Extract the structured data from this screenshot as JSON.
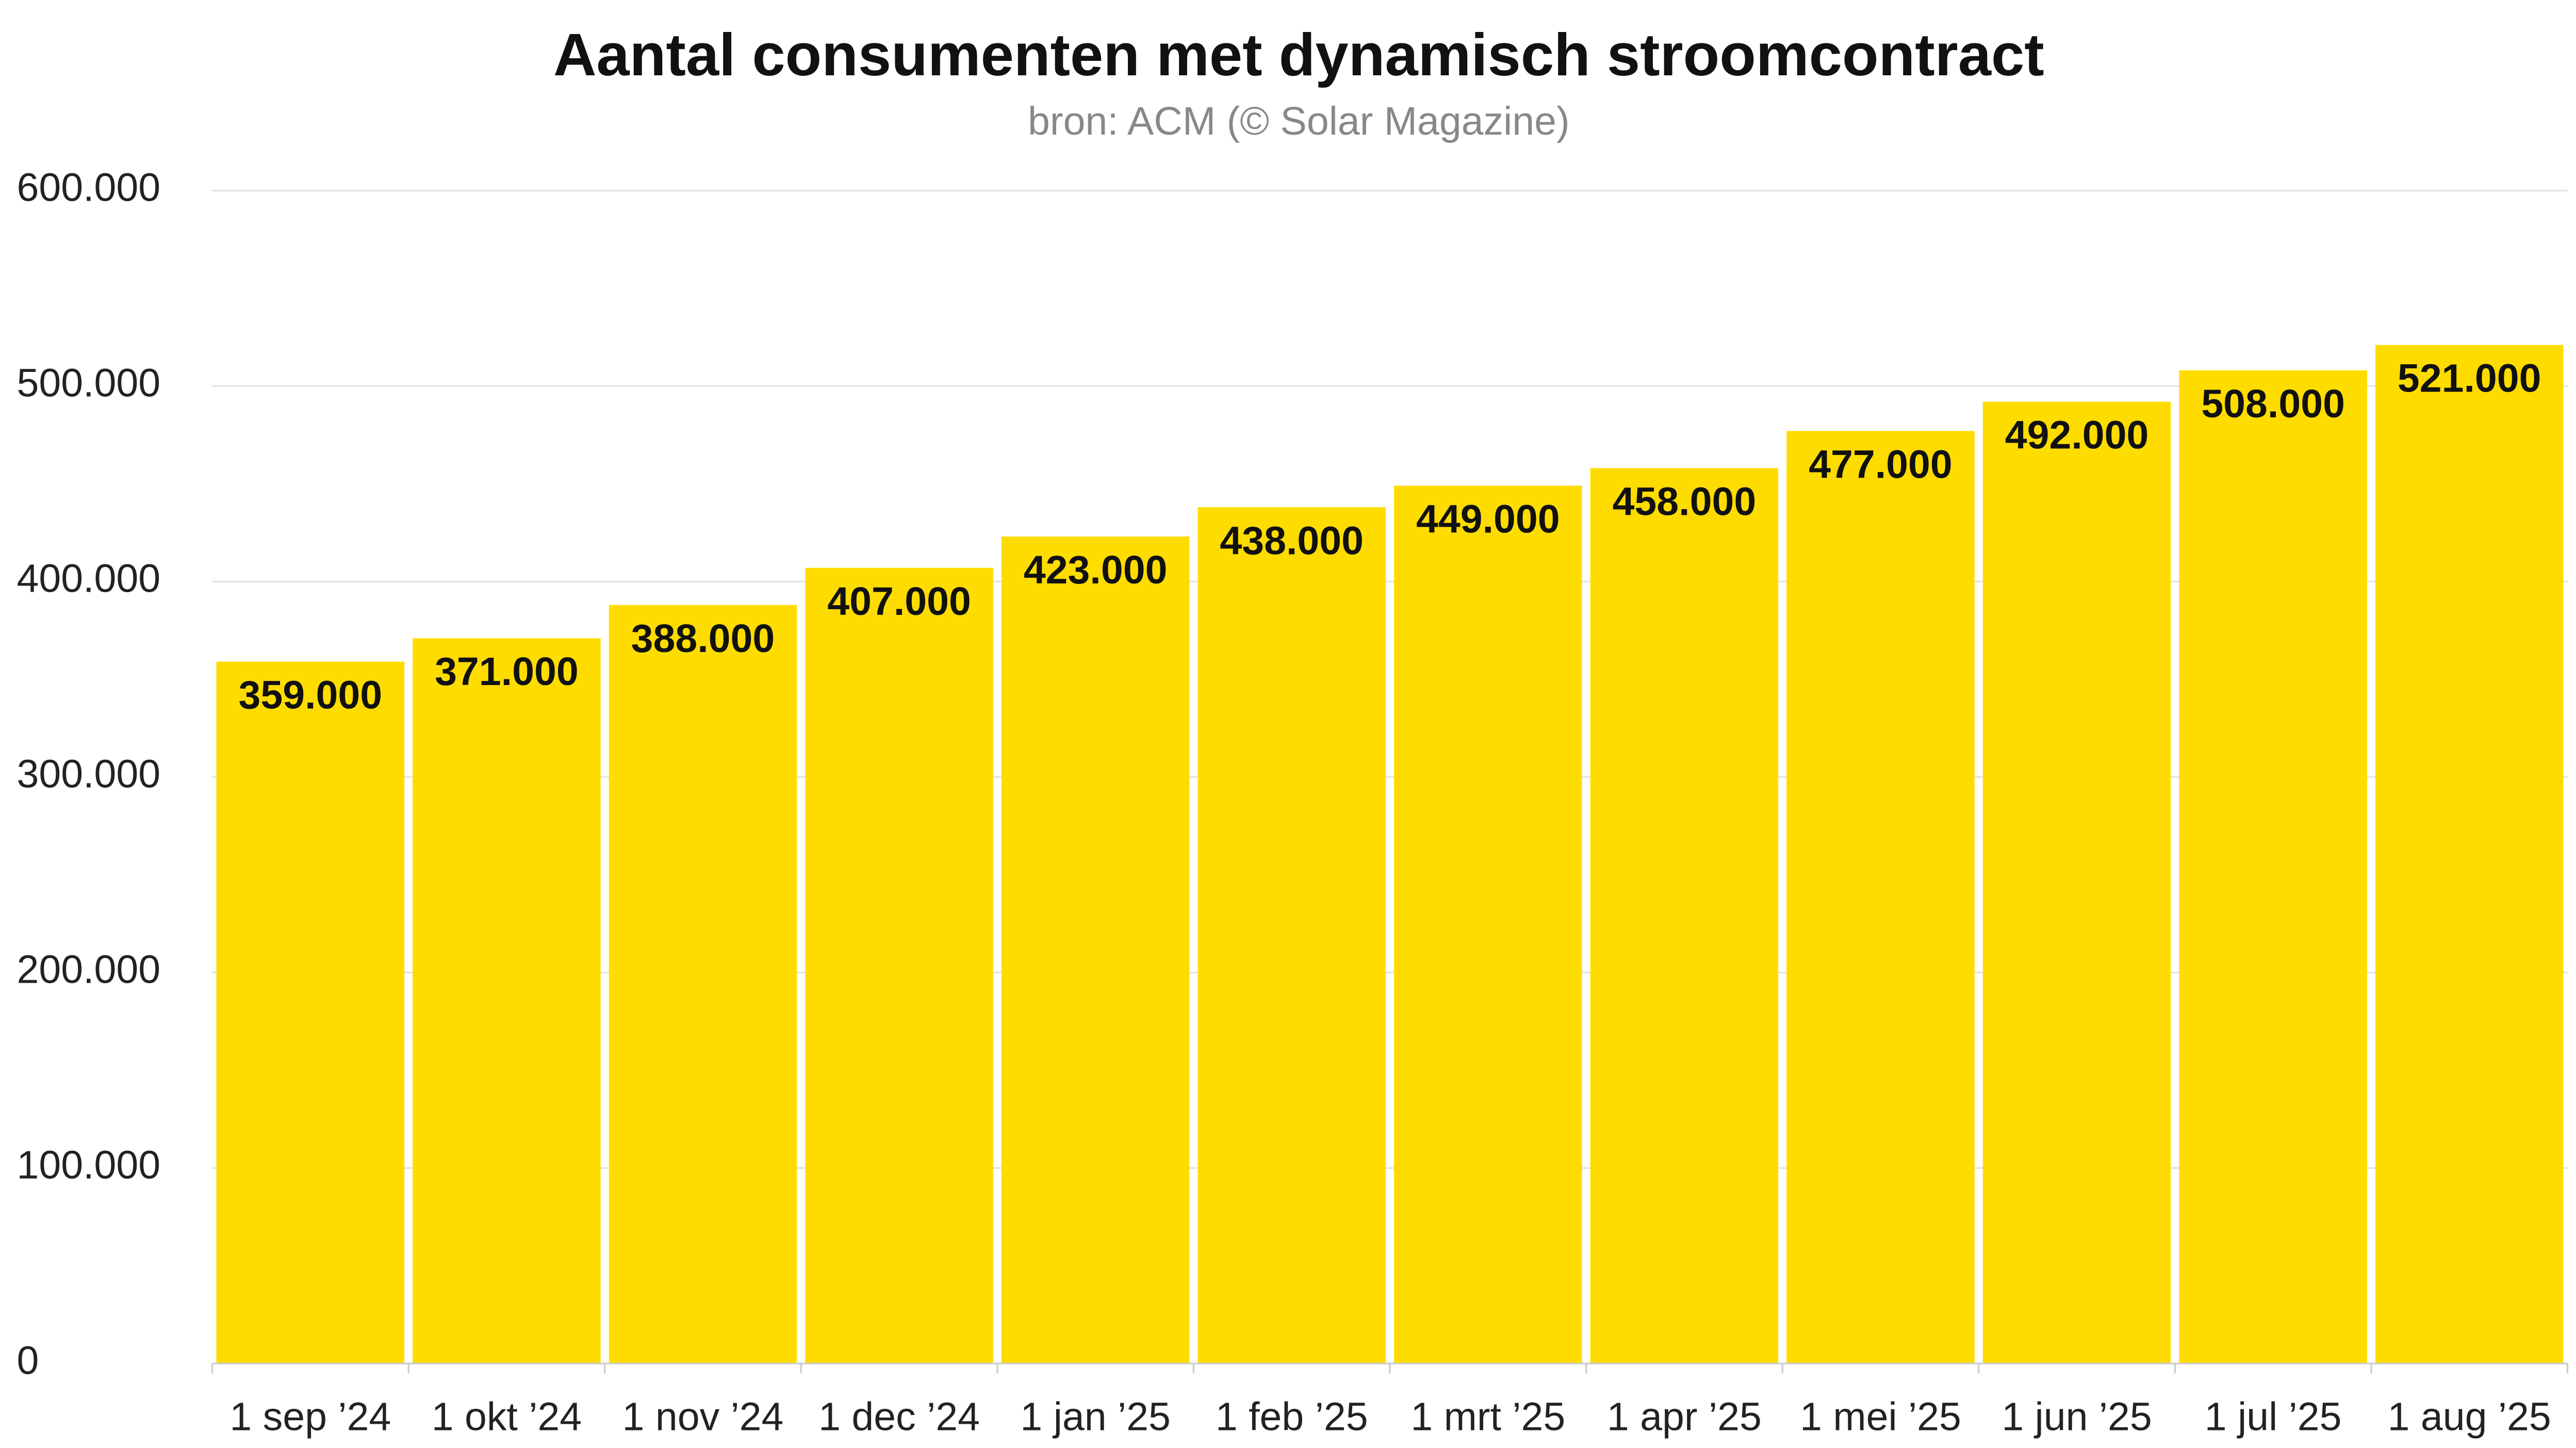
{
  "chart_data": {
    "type": "bar",
    "title": "Aantal consumenten met dynamisch stroomcontract",
    "subtitle": "bron: ACM (© Solar Magazine)",
    "categories": [
      "1 sep ’24",
      "1 okt ’24",
      "1 nov ’24",
      "1 dec ’24",
      "1 jan ’25",
      "1 feb ’25",
      "1 mrt ’25",
      "1 apr ’25",
      "1 mei ’25",
      "1 jun ’25",
      "1 jul ’25",
      "1 aug ’25"
    ],
    "values": [
      359000,
      371000,
      388000,
      407000,
      423000,
      438000,
      449000,
      458000,
      477000,
      492000,
      508000,
      521000
    ],
    "value_labels": [
      "359.000",
      "371.000",
      "388.000",
      "407.000",
      "423.000",
      "438.000",
      "449.000",
      "458.000",
      "477.000",
      "492.000",
      "508.000",
      "521.000"
    ],
    "color": "#ffdc00",
    "ylim": [
      0,
      600000
    ],
    "yticks": [
      0,
      {
        "value": 100000,
        "label": "100.000"
      },
      {
        "value": 200000,
        "label": "200.000"
      },
      {
        "value": 300000,
        "label": "300.000"
      },
      {
        "value": 400000,
        "label": "400.000"
      },
      {
        "value": 500000,
        "label": "500.000"
      },
      {
        "value": 600000,
        "label": "600.000"
      }
    ],
    "grid": true
  }
}
